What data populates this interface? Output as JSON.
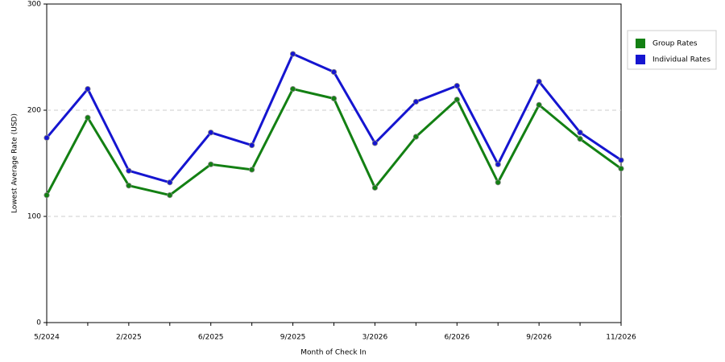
{
  "chart_data": {
    "type": "line",
    "xlabel": "Month of Check In",
    "ylabel": "Lowest Average Rate (USD)",
    "categories": [
      "5/2024",
      null,
      "2/2025",
      null,
      "6/2025",
      null,
      "9/2025",
      null,
      "3/2026",
      null,
      "6/2026",
      null,
      "9/2026",
      null,
      "11/2026"
    ],
    "series": [
      {
        "name": "Group Rates",
        "color": "#138013",
        "values": [
          120,
          193,
          129,
          120,
          149,
          144,
          220,
          211,
          127,
          175,
          210,
          132,
          205,
          173,
          145
        ]
      },
      {
        "name": "Individual Rates",
        "color": "#1515d0",
        "values": [
          174,
          220,
          143,
          132,
          179,
          167,
          253,
          236,
          169,
          208,
          223,
          149,
          227,
          179,
          153
        ]
      }
    ],
    "ylim": [
      0,
      300
    ],
    "yticks": [
      0,
      100,
      200,
      300
    ],
    "grid": true,
    "legend": "right"
  }
}
